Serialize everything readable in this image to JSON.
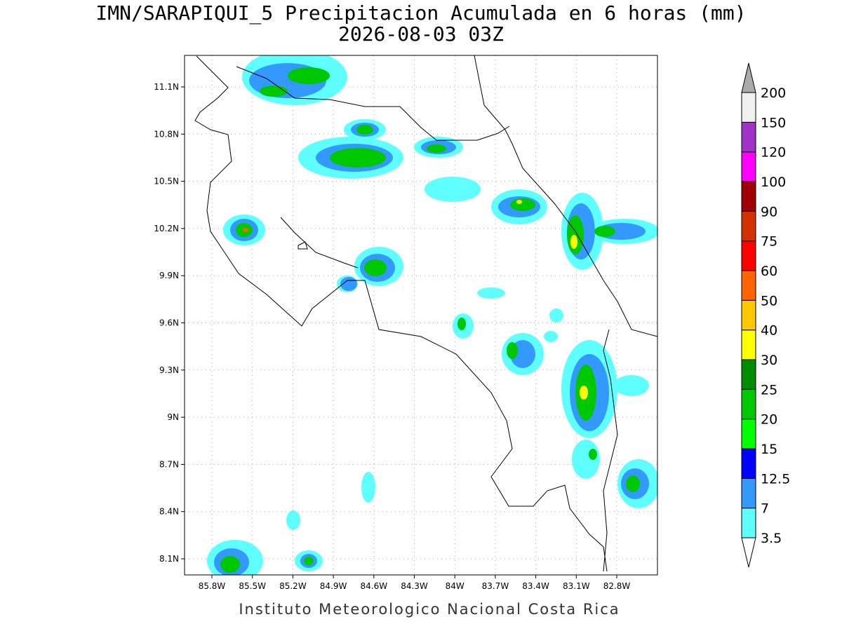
{
  "map": {
    "title": "IMN/SARAPIQUI_5 Precipitacion Acumulada en 6 horas (mm)",
    "subtitle": "2026-08-03 03Z",
    "lon_ticks": [
      "85.8W",
      "85.5W",
      "85.2W",
      "84.9W",
      "84.6W",
      "84.3W",
      "84W",
      "83.7W",
      "83.4W",
      "83.1W",
      "82.8W"
    ],
    "lat_ticks": [
      "11.1N",
      "10.8N",
      "10.5N",
      "10.2N",
      "9.9N",
      "9.6N",
      "9.3N",
      "9N",
      "8.7N",
      "8.4N",
      "8.1N"
    ],
    "colorbar": {
      "levels": [
        3.5,
        7,
        12.5,
        15,
        20,
        25,
        30,
        40,
        50,
        60,
        75,
        90,
        100,
        120,
        150,
        200
      ],
      "colors": [
        "#5fffff",
        "#3399ff",
        "#0000ff",
        "#00ff00",
        "#00c800",
        "#008c00",
        "#ffff00",
        "#ffc800",
        "#ff6400",
        "#ff0000",
        "#d23200",
        "#a00000",
        "#ff00ff",
        "#a032c8",
        "#f0f0f0"
      ],
      "under_color": "#ffffff",
      "over_color": "#aaaaaa"
    },
    "footer": "Instituto Meteorologico Nacional Costa Rica"
  }
}
